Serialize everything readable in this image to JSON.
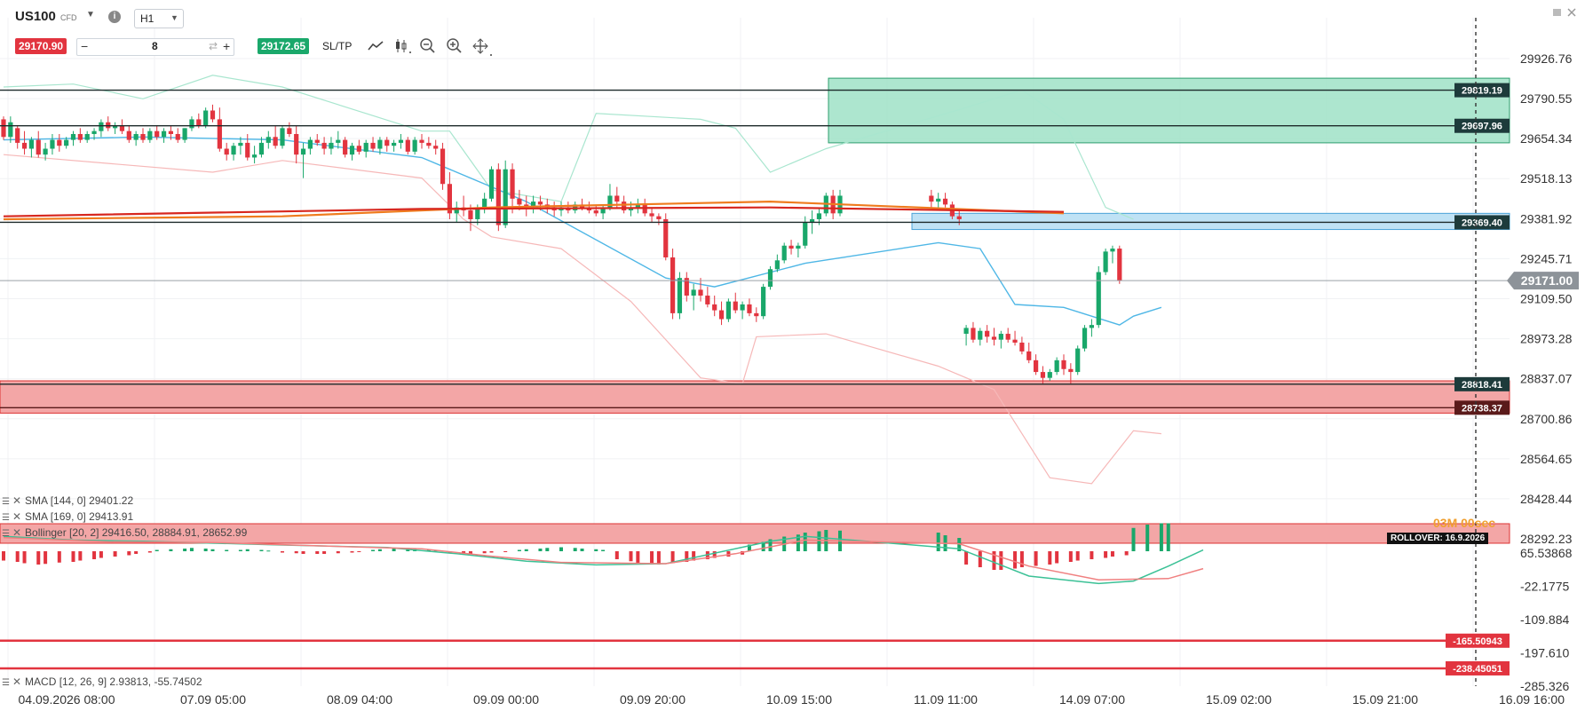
{
  "header": {
    "symbol": "US100",
    "symbol_type": "CFD",
    "timeframe": "H1",
    "sell_price": "29170.90",
    "quantity": "8",
    "buy_price": "29172.65",
    "sltp_label": "SL/TP",
    "minus": "−",
    "plus": "+",
    "icons": [
      "dropdown-caret-icon",
      "info-icon",
      "swap-icon",
      "line-chart-icon",
      "candles-icon",
      "zoom-out-icon",
      "zoom-in-icon",
      "move-icon",
      "window-icon",
      "close-icon"
    ]
  },
  "colors": {
    "sell": "#e2343f",
    "buy": "#1aa86b",
    "bull": "#19a76a",
    "bear": "#e2343f",
    "sma144": "#d7271f",
    "sma169": "#ef7b1e",
    "zone_green": "#9fe2c7",
    "zone_blue": "#bfe2f5",
    "zone_red": "#f3a6a6"
  },
  "price_axis": {
    "labels": [
      "29926.76",
      "29790.55",
      "29654.34",
      "29518.13",
      "29381.92",
      "29245.71",
      "29109.50",
      "28973.28",
      "28837.07",
      "28700.86",
      "28564.65",
      "28428.44",
      "28292.23"
    ],
    "current_price": "29171.00"
  },
  "levels": [
    {
      "label": "29819.19",
      "kind": "dark"
    },
    {
      "label": "29697.96",
      "kind": "dark"
    },
    {
      "label": "29369.40",
      "kind": "dark"
    },
    {
      "label": "28818.41",
      "kind": "dark"
    },
    {
      "label": "28738.37",
      "kind": "red"
    }
  ],
  "indicators": {
    "sma144": "SMA [144, 0] 29401.22",
    "sma169": "SMA [169, 0] 29413.91",
    "bollinger": "Bollinger [20, 2] 29416.50, 28884.91, 28652.99",
    "macd": "MACD [12, 26, 9] 2.93813, -55.74502",
    "countdown": "03M 00sec",
    "rollover": "ROLLOVER: 16.9.2026"
  },
  "macd_axis": {
    "labels": [
      "65.53868",
      "-22.1775",
      "-109.884",
      "-197.610",
      "-285.326"
    ],
    "levels": [
      "-165.50943",
      "-238.45051"
    ]
  },
  "time_axis": [
    "04.09.2026 08:00",
    "07.09 05:00",
    "08.09 04:00",
    "09.09 00:00",
    "09.09 20:00",
    "10.09 15:00",
    "11.09 11:00",
    "14.09 07:00",
    "15.09 02:00",
    "15.09 21:00",
    "16.09 16:00"
  ],
  "chart_data": {
    "type": "candlestick",
    "price_range": [
      28292.23,
      29926.76
    ],
    "candles": [
      [
        29720,
        29730,
        29650,
        29660
      ],
      [
        29660,
        29730,
        29640,
        29710
      ],
      [
        29690,
        29700,
        29620,
        29640
      ],
      [
        29640,
        29680,
        29600,
        29620
      ],
      [
        29620,
        29660,
        29590,
        29650
      ],
      [
        29650,
        29680,
        29590,
        29600
      ],
      [
        29600,
        29640,
        29580,
        29620
      ],
      [
        29620,
        29670,
        29600,
        29650
      ],
      [
        29650,
        29670,
        29610,
        29630
      ],
      [
        29630,
        29660,
        29620,
        29650
      ],
      [
        29650,
        29680,
        29630,
        29670
      ],
      [
        29670,
        29690,
        29640,
        29650
      ],
      [
        29650,
        29680,
        29640,
        29670
      ],
      [
        29670,
        29690,
        29650,
        29680
      ],
      [
        29680,
        29720,
        29660,
        29710
      ],
      [
        29710,
        29730,
        29680,
        29690
      ],
      [
        29690,
        29710,
        29670,
        29700
      ],
      [
        29700,
        29720,
        29670,
        29680
      ],
      [
        29680,
        29700,
        29640,
        29650
      ],
      [
        29650,
        29680,
        29630,
        29670
      ],
      [
        29670,
        29690,
        29640,
        29650
      ],
      [
        29650,
        29690,
        29640,
        29680
      ],
      [
        29680,
        29700,
        29650,
        29660
      ],
      [
        29660,
        29690,
        29640,
        29680
      ],
      [
        29680,
        29700,
        29650,
        29670
      ],
      [
        29670,
        29690,
        29640,
        29650
      ],
      [
        29650,
        29690,
        29640,
        29690
      ],
      [
        29690,
        29730,
        29680,
        29720
      ],
      [
        29720,
        29740,
        29690,
        29700
      ],
      [
        29700,
        29760,
        29690,
        29750
      ],
      [
        29750,
        29770,
        29710,
        29720
      ],
      [
        29720,
        29760,
        29610,
        29620
      ],
      [
        29620,
        29640,
        29580,
        29600
      ],
      [
        29600,
        29640,
        29580,
        29630
      ],
      [
        29630,
        29660,
        29600,
        29640
      ],
      [
        29640,
        29670,
        29580,
        29590
      ],
      [
        29590,
        29630,
        29570,
        29600
      ],
      [
        29600,
        29660,
        29590,
        29640
      ],
      [
        29640,
        29680,
        29620,
        29660
      ],
      [
        29660,
        29700,
        29620,
        29630
      ],
      [
        29630,
        29700,
        29620,
        29690
      ],
      [
        29690,
        29710,
        29660,
        29670
      ],
      [
        29670,
        29700,
        29570,
        29600
      ],
      [
        29600,
        29640,
        29520,
        29620
      ],
      [
        29620,
        29660,
        29600,
        29650
      ],
      [
        29650,
        29670,
        29630,
        29640
      ],
      [
        29640,
        29660,
        29600,
        29620
      ],
      [
        29620,
        29660,
        29600,
        29640
      ],
      [
        29640,
        29680,
        29620,
        29650
      ],
      [
        29650,
        29660,
        29590,
        29600
      ],
      [
        29600,
        29640,
        29580,
        29630
      ],
      [
        29630,
        29650,
        29600,
        29610
      ],
      [
        29610,
        29650,
        29590,
        29640
      ],
      [
        29640,
        29660,
        29610,
        29620
      ],
      [
        29620,
        29660,
        29600,
        29650
      ],
      [
        29650,
        29660,
        29610,
        29630
      ],
      [
        29630,
        29650,
        29610,
        29640
      ],
      [
        29640,
        29670,
        29620,
        29650
      ],
      [
        29650,
        29660,
        29600,
        29610
      ],
      [
        29610,
        29660,
        29600,
        29650
      ],
      [
        29650,
        29670,
        29620,
        29640
      ],
      [
        29640,
        29660,
        29620,
        29630
      ],
      [
        29630,
        29650,
        29600,
        29620
      ],
      [
        29620,
        29640,
        29480,
        29500
      ],
      [
        29500,
        29540,
        29380,
        29400
      ],
      [
        29400,
        29440,
        29370,
        29420
      ],
      [
        29420,
        29460,
        29390,
        29410
      ],
      [
        29410,
        29430,
        29340,
        29380
      ],
      [
        29380,
        29430,
        29360,
        29420
      ],
      [
        29420,
        29470,
        29400,
        29450
      ],
      [
        29450,
        29560,
        29440,
        29550
      ],
      [
        29550,
        29570,
        29340,
        29360
      ],
      [
        29360,
        29580,
        29350,
        29550
      ],
      [
        29550,
        29570,
        29400,
        29450
      ],
      [
        29450,
        29480,
        29410,
        29430
      ],
      [
        29430,
        29460,
        29390,
        29420
      ],
      [
        29420,
        29460,
        29400,
        29440
      ],
      [
        29440,
        29460,
        29410,
        29430
      ],
      [
        29430,
        29450,
        29400,
        29420
      ],
      [
        29420,
        29440,
        29390,
        29410
      ],
      [
        29410,
        29440,
        29390,
        29420
      ],
      [
        29420,
        29440,
        29400,
        29410
      ],
      [
        29410,
        29440,
        29400,
        29430
      ],
      [
        29430,
        29450,
        29410,
        29420
      ],
      [
        29420,
        29440,
        29400,
        29410
      ],
      [
        29410,
        29430,
        29390,
        29400
      ],
      [
        29400,
        29430,
        29380,
        29420
      ],
      [
        29420,
        29500,
        29410,
        29460
      ],
      [
        29460,
        29490,
        29420,
        29440
      ],
      [
        29440,
        29460,
        29400,
        29410
      ],
      [
        29410,
        29440,
        29390,
        29420
      ],
      [
        29420,
        29450,
        29400,
        29430
      ],
      [
        29430,
        29450,
        29390,
        29400
      ],
      [
        29400,
        29420,
        29370,
        29390
      ],
      [
        29390,
        29400,
        29360,
        29380
      ],
      [
        29380,
        29400,
        29240,
        29250
      ],
      [
        29250,
        29280,
        29040,
        29060
      ],
      [
        29060,
        29200,
        29040,
        29180
      ],
      [
        29180,
        29200,
        29100,
        29120
      ],
      [
        29120,
        29160,
        29070,
        29140
      ],
      [
        29140,
        29180,
        29100,
        29120
      ],
      [
        29120,
        29150,
        29080,
        29090
      ],
      [
        29090,
        29120,
        29050,
        29070
      ],
      [
        29070,
        29100,
        29020,
        29040
      ],
      [
        29040,
        29110,
        29030,
        29100
      ],
      [
        29100,
        29130,
        29060,
        29070
      ],
      [
        29070,
        29100,
        29040,
        29090
      ],
      [
        29090,
        29110,
        29050,
        29060
      ],
      [
        29060,
        29080,
        29030,
        29050
      ],
      [
        29050,
        29160,
        29040,
        29150
      ],
      [
        29150,
        29220,
        29140,
        29210
      ],
      [
        29210,
        29260,
        29200,
        29240
      ],
      [
        29240,
        29300,
        29230,
        29290
      ],
      [
        29290,
        29310,
        29260,
        29280
      ],
      [
        29280,
        29300,
        29250,
        29290
      ],
      [
        29290,
        29390,
        29280,
        29370
      ],
      [
        29370,
        29410,
        29330,
        29380
      ],
      [
        29380,
        29420,
        29360,
        29400
      ],
      [
        29400,
        29470,
        29390,
        29460
      ],
      [
        29460,
        29480,
        29380,
        29400
      ],
      [
        29400,
        29480,
        29390,
        29460
      ],
      [
        29460,
        29480,
        29420,
        29440
      ],
      [
        29440,
        29470,
        29420,
        29450
      ],
      [
        29450,
        29470,
        29420,
        29430
      ],
      [
        29430,
        29440,
        29380,
        29390
      ],
      [
        29390,
        29410,
        29360,
        29380
      ],
      [
        28990,
        29020,
        28950,
        29010
      ],
      [
        29010,
        29030,
        28960,
        28970
      ],
      [
        28970,
        29010,
        28950,
        29000
      ],
      [
        29000,
        29020,
        28960,
        28980
      ],
      [
        28980,
        29010,
        28950,
        28970
      ],
      [
        28970,
        29000,
        28940,
        28990
      ],
      [
        28990,
        29010,
        28960,
        28970
      ],
      [
        28970,
        29000,
        28950,
        28960
      ],
      [
        28960,
        28980,
        28920,
        28930
      ],
      [
        28930,
        28960,
        28890,
        28900
      ],
      [
        28900,
        28920,
        28850,
        28860
      ],
      [
        28860,
        28880,
        28820,
        28840
      ],
      [
        28840,
        28870,
        28830,
        28860
      ],
      [
        28860,
        28910,
        28850,
        28900
      ],
      [
        28900,
        28920,
        28850,
        28870
      ],
      [
        28870,
        28890,
        28820,
        28860
      ],
      [
        28860,
        28950,
        28850,
        28940
      ],
      [
        28940,
        29020,
        28930,
        29010
      ],
      [
        29010,
        29040,
        28980,
        29020
      ],
      [
        29020,
        29220,
        29010,
        29200
      ],
      [
        29200,
        29280,
        29190,
        29270
      ],
      [
        29270,
        29290,
        29230,
        29280
      ],
      [
        29280,
        29290,
        29160,
        29170
      ]
    ],
    "gap_after_index": 120,
    "sma144": [
      [
        0,
        29390
      ],
      [
        60,
        29415
      ],
      [
        110,
        29420
      ],
      [
        140,
        29405
      ]
    ],
    "sma169": [
      [
        0,
        29380
      ],
      [
        40,
        29390
      ],
      [
        70,
        29420
      ],
      [
        110,
        29440
      ],
      [
        140,
        29400
      ]
    ],
    "bb_mid": [
      [
        0,
        29650
      ],
      [
        20,
        29660
      ],
      [
        40,
        29650
      ],
      [
        60,
        29590
      ],
      [
        75,
        29440
      ],
      [
        95,
        29180
      ],
      [
        102,
        29150
      ],
      [
        115,
        29230
      ],
      [
        122,
        29300
      ],
      [
        128,
        29280
      ],
      [
        133,
        29090
      ],
      [
        140,
        29080
      ],
      [
        148,
        29020
      ],
      [
        150,
        29050
      ],
      [
        154,
        29080
      ]
    ],
    "bb_up": [
      [
        0,
        29830
      ],
      [
        10,
        29840
      ],
      [
        20,
        29790
      ],
      [
        30,
        29870
      ],
      [
        40,
        29830
      ],
      [
        60,
        29680
      ],
      [
        64,
        29680
      ],
      [
        70,
        29480
      ],
      [
        80,
        29440
      ],
      [
        85,
        29740
      ],
      [
        100,
        29720
      ],
      [
        105,
        29690
      ],
      [
        110,
        29540
      ],
      [
        118,
        29620
      ],
      [
        126,
        29760
      ],
      [
        134,
        29820
      ],
      [
        140,
        29720
      ],
      [
        146,
        29420
      ],
      [
        150,
        29380
      ]
    ],
    "bb_dn": [
      [
        0,
        29600
      ],
      [
        30,
        29540
      ],
      [
        40,
        29580
      ],
      [
        60,
        29520
      ],
      [
        66,
        29380
      ],
      [
        70,
        29320
      ],
      [
        80,
        29280
      ],
      [
        90,
        29100
      ],
      [
        100,
        28840
      ],
      [
        106,
        28820
      ],
      [
        108,
        28980
      ],
      [
        118,
        28990
      ],
      [
        122,
        28880
      ],
      [
        130,
        28800
      ],
      [
        138,
        28500
      ],
      [
        144,
        28480
      ],
      [
        150,
        28660
      ],
      [
        154,
        28650
      ]
    ],
    "macd_hist": [
      -14,
      -16,
      -18,
      -20,
      -19,
      -17,
      -16,
      -14,
      -12,
      -10,
      -8,
      -6,
      -4,
      -2,
      2,
      3,
      4,
      5,
      4,
      3,
      2,
      2,
      3,
      2,
      1,
      -2,
      -3,
      -4,
      -4,
      -4,
      -3,
      -2,
      -1,
      2,
      3,
      5,
      5,
      4,
      3,
      2,
      -3,
      -4,
      -4,
      -3,
      -2,
      -1,
      2,
      3,
      4,
      5,
      6,
      5,
      4,
      3,
      2,
      -12,
      -15,
      -18,
      -20,
      -20,
      -18,
      -16,
      -14,
      -12,
      -10,
      -8,
      -5,
      10,
      14,
      18,
      22,
      25,
      28,
      30,
      32,
      31,
      28,
      24,
      20,
      -20,
      -24,
      -28,
      -28,
      -26,
      -24,
      -22,
      -20,
      -18,
      -16,
      -14,
      -12,
      -10,
      -8,
      -6,
      35,
      40,
      42,
      42
    ],
    "macd_line": [
      [
        0,
        60
      ],
      [
        10,
        45
      ],
      [
        20,
        40
      ],
      [
        40,
        25
      ],
      [
        55,
        15
      ],
      [
        65,
        -10
      ],
      [
        75,
        -40
      ],
      [
        85,
        -55
      ],
      [
        95,
        -50
      ],
      [
        110,
        40
      ],
      [
        115,
        60
      ],
      [
        125,
        10
      ],
      [
        135,
        -100
      ],
      [
        145,
        -130
      ],
      [
        150,
        -120
      ],
      [
        155,
        -60
      ],
      [
        160,
        5
      ]
    ],
    "signal_line": [
      [
        0,
        55
      ],
      [
        15,
        38
      ],
      [
        30,
        35
      ],
      [
        45,
        22
      ],
      [
        60,
        10
      ],
      [
        70,
        -20
      ],
      [
        80,
        -45
      ],
      [
        95,
        -50
      ],
      [
        105,
        -10
      ],
      [
        115,
        45
      ],
      [
        125,
        30
      ],
      [
        135,
        -60
      ],
      [
        145,
        -115
      ],
      [
        155,
        -110
      ],
      [
        160,
        -70
      ]
    ],
    "macd_range": [
      -285.326,
      65.53868
    ]
  }
}
